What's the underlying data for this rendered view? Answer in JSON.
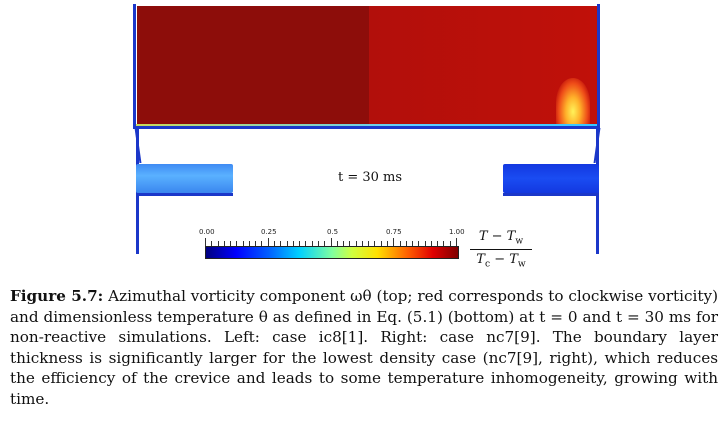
{
  "figure": {
    "time_label": "t = 30 ms",
    "colorbar": {
      "ticks": [
        "0.00",
        "0.25",
        "0.5",
        "0.75",
        "1.00"
      ],
      "numerator": "T − T",
      "numerator_sub": "w",
      "denominator": "T",
      "denominator_sub1": "c",
      "denominator_mid": " − T",
      "denominator_sub2": "w"
    }
  },
  "caption": {
    "label": "Figure 5.7:",
    "text": "Azimuthal vorticity component ωθ (top; red corresponds to clockwise vorticity) and dimensionless temperature θ as defined in Eq. (5.1) (bottom) at t = 0 and t = 30 ms for non-reactive simulations. Left: case ic8[1]. Right: case nc7[9]. The boundary layer thickness is significantly larger for the lowest density case (nc7[9], right), which reduces the efficiency of the crevice and leads to some temperature inhomogeneity, growing with time."
  }
}
